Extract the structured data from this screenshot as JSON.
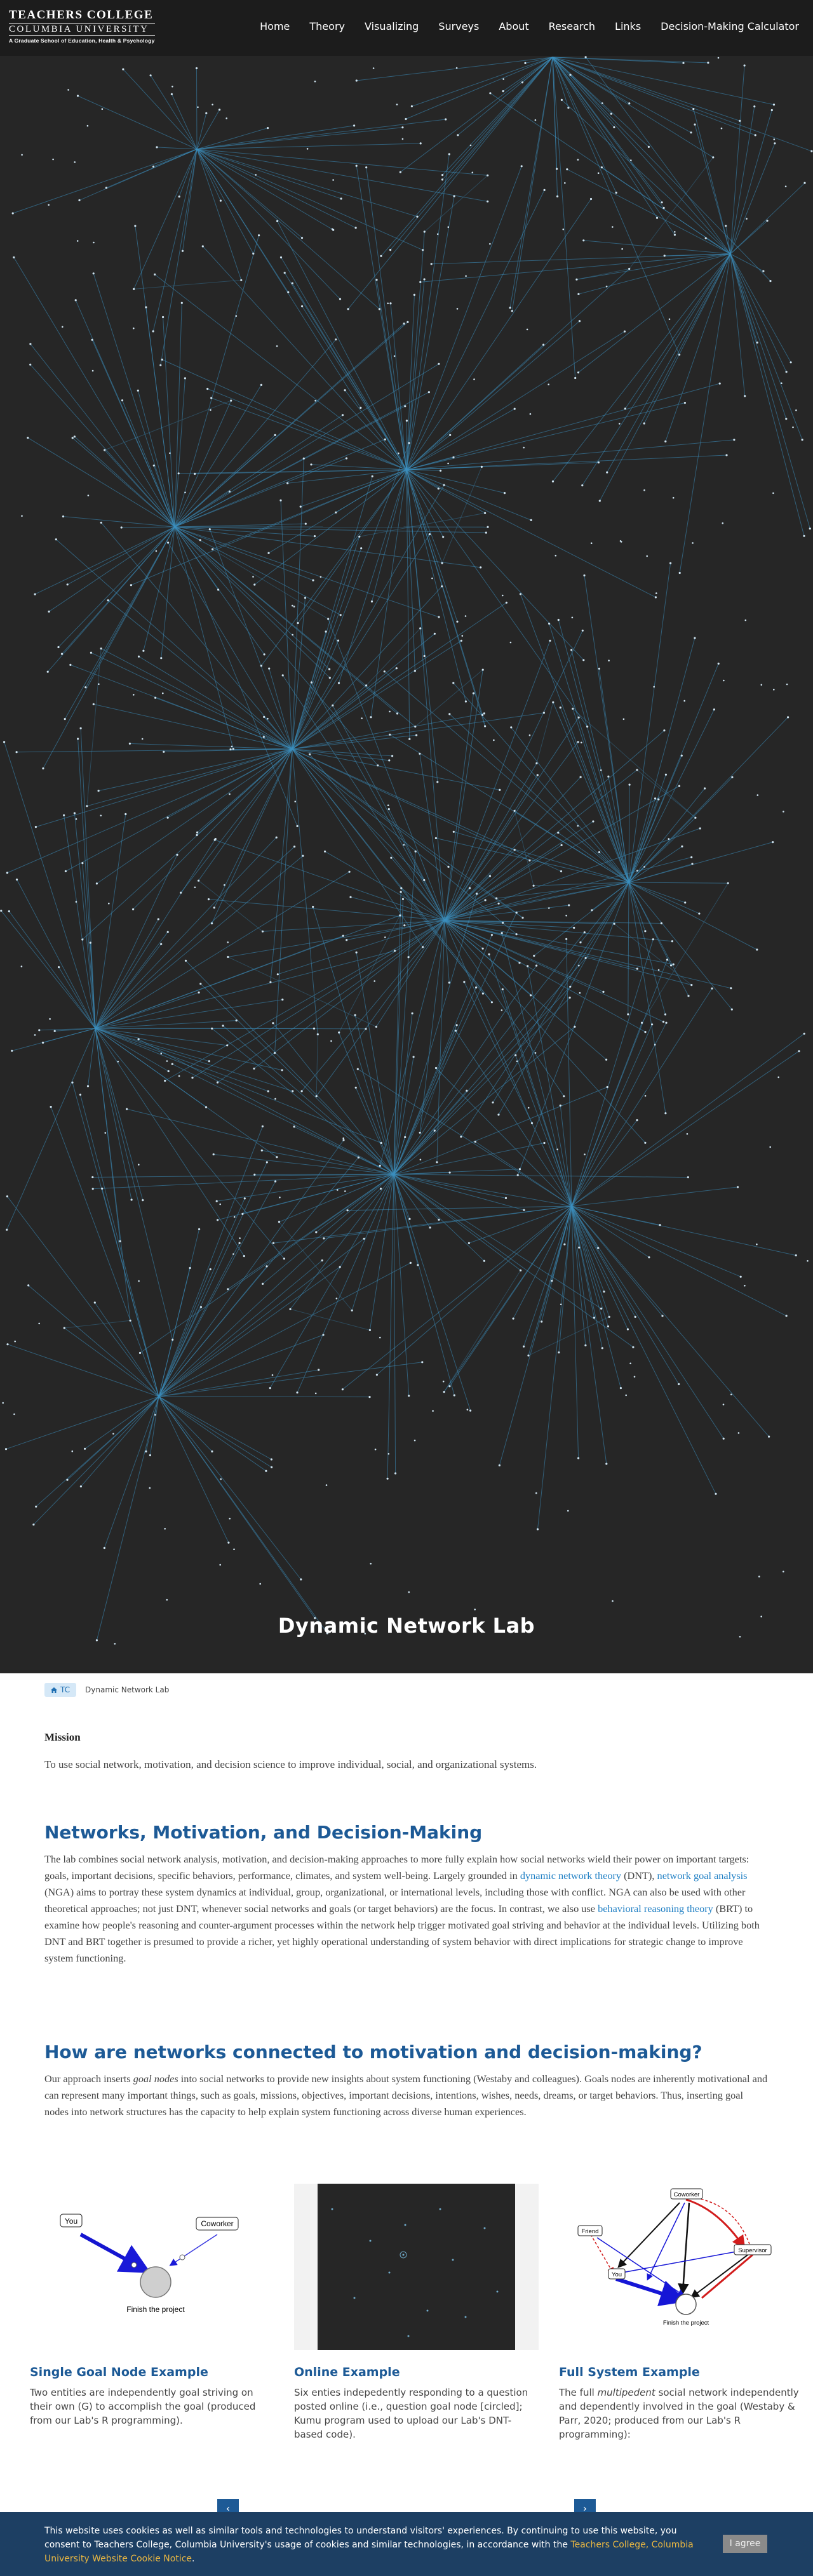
{
  "header": {
    "logo_line1": "TEACHERS COLLEGE",
    "logo_line2": "COLUMBIA UNIVERSITY",
    "logo_line3": "A Graduate School of Education, Health & Psychology",
    "nav": [
      "Home",
      "Theory",
      "Visualizing",
      "Surveys",
      "About",
      "Research",
      "Links",
      "Decision-Making Calculator"
    ]
  },
  "hero": {
    "title": "Dynamic Network Lab",
    "background_color": "#262626",
    "network_color": "#3d8fc0"
  },
  "breadcrumb": {
    "home": "TC",
    "current": "Dynamic Network Lab"
  },
  "mission": {
    "heading": "Mission",
    "text": "To use social network, motivation, and decision science to improve individual, social, and organizational systems."
  },
  "section1": {
    "heading": "Networks, Motivation, and Decision-Making",
    "t1": "The lab combines social network analysis, motivation, and decision-making approaches to more fully explain how social networks wield their power on important targets: goals, important decisions, specific behaviors, performance, climates, and system well-being.  Largely grounded in ",
    "link1": "dynamic network theory",
    "t2": " (DNT), ",
    "link2": "network goal analysis",
    "t3": " (NGA) aims to portray these system dynamics at individual, group, organizational, or international levels, including those with conflict. NGA can also be used with other theoretical approaches; not just DNT, whenever social networks and goals (or target behaviors) are the focus.  In contrast, we also use ",
    "link3": "behavioral reasoning theory",
    "t4": " (BRT) to examine how people's reasoning and counter-argument processes within the network help trigger motivated goal striving and behavior at the individual levels. Utilizing both DNT and BRT together is presumed to provide a richer, yet highly operational understanding of system behavior with direct implications for strategic change to improve system functioning."
  },
  "section2": {
    "heading": "How are networks connected to motivation and decision-making?",
    "t1": "Our approach inserts ",
    "em1": "goal nodes",
    "t2": " into social networks to provide new insights about system functioning (Westaby and colleagues). Goals nodes are inherently motivational and can represent many important things, such as goals, missions, objectives, important decisions, intentions, wishes, needs, dreams, or target behaviors. Thus, inserting goal nodes into network structures has the capacity to help explain system functioning across diverse human experiences."
  },
  "cards": [
    {
      "title": "Single Goal Node Example",
      "text": "Two entities are independently goal striving on their own (G) to accomplish the goal (produced from our Lab's R programming).",
      "img": {
        "you": "You",
        "coworker": "Coworker",
        "goal": "Finish the project"
      }
    },
    {
      "title": "Online Example",
      "text": "Six enties indepedently responding to a question posted online (i.e., question goal node [circled]; Kumu program used to upload our Lab's DNT-based code)."
    },
    {
      "title": "Full System Example",
      "t1": "The full ",
      "em1": "multipedent",
      "t2": " social network independently and dependently involved in the goal (Westaby & Parr, 2020; produced from our Lab's R programming):",
      "img": {
        "coworker": "Coworker",
        "friend": "Friend",
        "supervisor": "Supervisor",
        "you": "You",
        "goal": "Finish the project"
      }
    }
  ],
  "cookie": {
    "t1": "This website uses cookies as well as similar tools and technologies to understand visitors' experiences. By continuing to use this website, you consent to Teachers College, Columbia University's usage of cookies and similar technologies, in accordance with the ",
    "link": "Teachers College, Columbia University Website Cookie Notice",
    "t2": ".",
    "button": "I agree"
  }
}
